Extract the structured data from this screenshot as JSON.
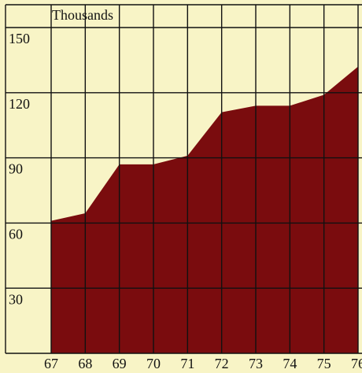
{
  "chart_data": {
    "type": "area",
    "y_label": "Thousands",
    "categories": [
      "67",
      "68",
      "69",
      "70",
      "71",
      "72",
      "73",
      "74",
      "75",
      "76"
    ],
    "values": [
      61,
      64.5,
      87,
      87,
      91,
      111,
      114,
      114,
      119,
      132
    ],
    "color": "#7a0c0e",
    "ylim": [
      0,
      150
    ],
    "yticks": [
      30,
      60,
      90,
      120,
      150
    ],
    "grid": true
  }
}
